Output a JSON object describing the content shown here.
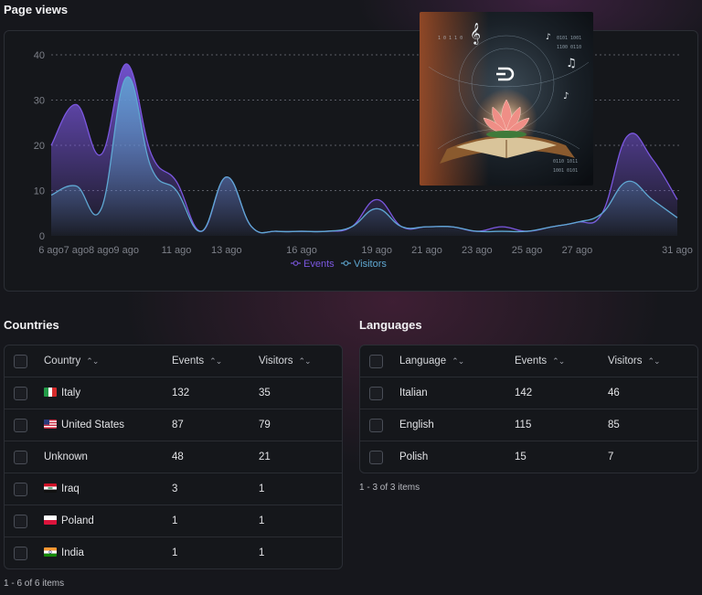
{
  "page_views": {
    "title": "Page views"
  },
  "chart_data": {
    "type": "area",
    "title": "Page views",
    "categories": [
      "6 ago",
      "7 ago",
      "8 ago",
      "9 ago",
      "11 ago",
      "13 ago",
      "16 ago",
      "19 ago",
      "21 ago",
      "23 ago",
      "25 ago",
      "27 ago",
      "31 ago"
    ],
    "x_day": [
      6,
      7,
      8,
      9,
      11,
      13,
      16,
      19,
      21,
      23,
      25,
      27,
      31
    ],
    "ylim": [
      0,
      40
    ],
    "yticks": [
      0,
      10,
      20,
      30,
      40
    ],
    "grid": true,
    "legend_position": "bottom-center",
    "series": [
      {
        "name": "Events",
        "color": "#7b57e0",
        "points": [
          [
            6,
            20
          ],
          [
            7,
            29
          ],
          [
            8,
            18
          ],
          [
            9,
            38
          ],
          [
            10,
            18
          ],
          [
            11,
            12
          ],
          [
            12,
            1
          ],
          [
            13,
            13
          ],
          [
            14,
            2
          ],
          [
            15,
            1
          ],
          [
            16,
            1
          ],
          [
            17,
            1
          ],
          [
            18,
            2
          ],
          [
            19,
            8
          ],
          [
            20,
            2
          ],
          [
            21,
            2
          ],
          [
            22,
            2
          ],
          [
            23,
            1
          ],
          [
            24,
            2
          ],
          [
            25,
            1
          ],
          [
            26,
            2
          ],
          [
            27,
            3
          ],
          [
            28,
            5
          ],
          [
            29,
            22
          ],
          [
            30,
            17
          ],
          [
            31,
            8
          ]
        ]
      },
      {
        "name": "Visitors",
        "color": "#5fa8d3",
        "points": [
          [
            6,
            9
          ],
          [
            7,
            11
          ],
          [
            8,
            6
          ],
          [
            9,
            35
          ],
          [
            10,
            15
          ],
          [
            11,
            10
          ],
          [
            12,
            1
          ],
          [
            13,
            13
          ],
          [
            14,
            2
          ],
          [
            15,
            1
          ],
          [
            16,
            1
          ],
          [
            17,
            1
          ],
          [
            18,
            2
          ],
          [
            19,
            6
          ],
          [
            20,
            2
          ],
          [
            21,
            2
          ],
          [
            22,
            2
          ],
          [
            23,
            1
          ],
          [
            24,
            1
          ],
          [
            25,
            1
          ],
          [
            26,
            2
          ],
          [
            27,
            3
          ],
          [
            28,
            5
          ],
          [
            29,
            12
          ],
          [
            30,
            8
          ],
          [
            31,
            4
          ]
        ]
      }
    ]
  },
  "countries": {
    "title": "Countries",
    "headers": {
      "name": "Country",
      "events": "Events",
      "visitors": "Visitors"
    },
    "rows": [
      {
        "name": "Italy",
        "flag": "it",
        "events": "132",
        "visitors": "35"
      },
      {
        "name": "United States",
        "flag": "us",
        "events": "87",
        "visitors": "79"
      },
      {
        "name": "Unknown",
        "flag": "",
        "events": "48",
        "visitors": "21"
      },
      {
        "name": "Iraq",
        "flag": "iq",
        "events": "3",
        "visitors": "1"
      },
      {
        "name": "Poland",
        "flag": "pl",
        "events": "1",
        "visitors": "1"
      },
      {
        "name": "India",
        "flag": "in",
        "events": "1",
        "visitors": "1"
      }
    ],
    "footer": "1 - 6 of 6 items"
  },
  "languages": {
    "title": "Languages",
    "headers": {
      "name": "Language",
      "events": "Events",
      "visitors": "Visitors"
    },
    "rows": [
      {
        "name": "Italian",
        "events": "142",
        "visitors": "46"
      },
      {
        "name": "English",
        "events": "115",
        "visitors": "85"
      },
      {
        "name": "Polish",
        "events": "15",
        "visitors": "7"
      }
    ],
    "footer": "1 - 3 of 3 items"
  },
  "icons": {
    "sort": "sort-arrows-icon",
    "artwork": "book-lotus-artwork"
  }
}
